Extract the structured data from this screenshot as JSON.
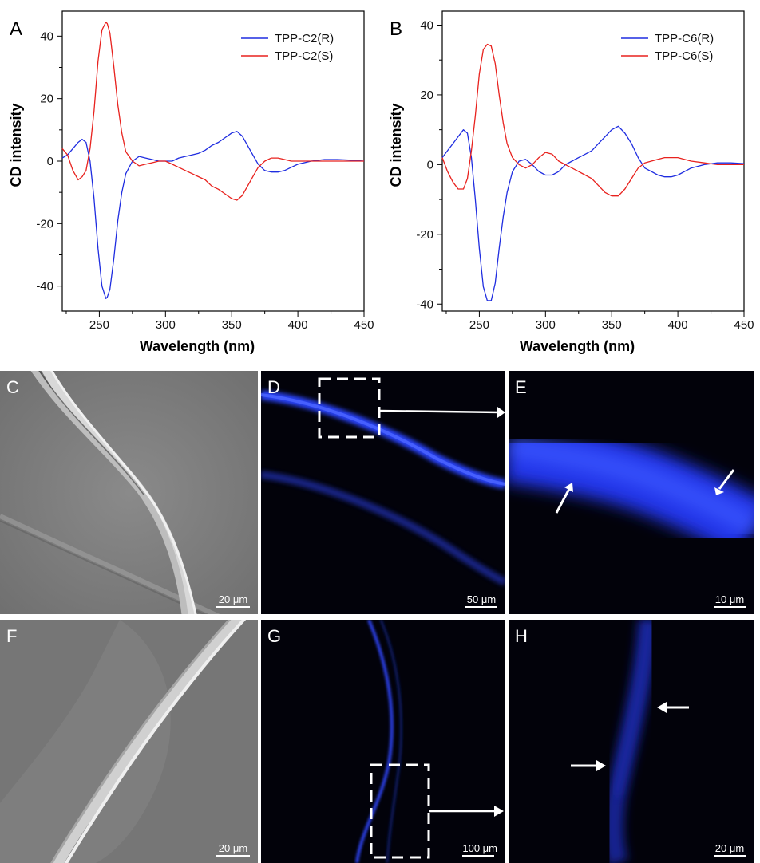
{
  "chart_data": [
    {
      "type": "line",
      "panel_label": "A",
      "xlabel": "Wavelength (nm)",
      "ylabel": "CD intensity",
      "xlim": [
        222,
        450
      ],
      "ylim": [
        -48,
        48
      ],
      "xticks": [
        250,
        300,
        350,
        400,
        450
      ],
      "yticks": [
        -40,
        -20,
        0,
        20,
        40
      ],
      "legend_position": "top-right",
      "series": [
        {
          "name": "TPP-C2(R)",
          "color": "#1f2de0",
          "x": [
            222,
            226,
            230,
            234,
            237,
            240,
            243,
            246,
            249,
            252,
            255,
            256,
            258,
            261,
            264,
            267,
            270,
            275,
            280,
            285,
            290,
            295,
            300,
            305,
            310,
            315,
            320,
            325,
            330,
            335,
            340,
            345,
            350,
            354,
            358,
            362,
            366,
            370,
            375,
            380,
            385,
            390,
            395,
            400,
            410,
            420,
            430,
            440,
            450
          ],
          "y": [
            1,
            2,
            4,
            6,
            7,
            6,
            0,
            -12,
            -28,
            -40,
            -44,
            -43.5,
            -41,
            -31,
            -19,
            -10,
            -4,
            0,
            1.5,
            1,
            0.5,
            0,
            0,
            0,
            1,
            1.5,
            2,
            2.5,
            3.5,
            5,
            6,
            7.5,
            9,
            9.5,
            8,
            5,
            2,
            -1,
            -3,
            -3.5,
            -3.5,
            -3,
            -2,
            -1,
            0,
            0.5,
            0.5,
            0.3,
            0
          ]
        },
        {
          "name": "TPP-C2(S)",
          "color": "#e8221e",
          "x": [
            222,
            226,
            230,
            234,
            237,
            240,
            243,
            246,
            249,
            252,
            255,
            256,
            258,
            261,
            264,
            267,
            270,
            275,
            280,
            285,
            290,
            295,
            300,
            305,
            310,
            315,
            320,
            325,
            330,
            335,
            340,
            345,
            350,
            354,
            358,
            362,
            366,
            370,
            375,
            380,
            385,
            390,
            395,
            400,
            410,
            420,
            430,
            440,
            450
          ],
          "y": [
            4,
            2,
            -3,
            -6,
            -5,
            -3,
            4,
            16,
            32,
            42,
            44.5,
            44,
            41,
            30,
            18,
            9,
            3,
            0,
            -1.5,
            -1,
            -0.5,
            0,
            0,
            -1,
            -2,
            -3,
            -4,
            -5,
            -6,
            -8,
            -9,
            -10.5,
            -12,
            -12.5,
            -11,
            -8,
            -5,
            -2,
            0,
            1,
            1,
            0.5,
            0,
            0,
            0,
            0,
            0,
            0,
            0
          ]
        }
      ]
    },
    {
      "type": "line",
      "panel_label": "B",
      "xlabel": "Wavelength (nm)",
      "ylabel": "CD intensity",
      "xlim": [
        222,
        450
      ],
      "ylim": [
        -42,
        44
      ],
      "xticks": [
        250,
        300,
        350,
        400,
        450
      ],
      "yticks": [
        -40,
        -20,
        0,
        20,
        40
      ],
      "legend_position": "top-right",
      "series": [
        {
          "name": "TPP-C6(R)",
          "color": "#1f2de0",
          "x": [
            222,
            226,
            230,
            234,
            238,
            241,
            244,
            247,
            250,
            253,
            256,
            259,
            262,
            265,
            268,
            271,
            275,
            280,
            285,
            290,
            295,
            300,
            305,
            310,
            315,
            320,
            325,
            330,
            335,
            340,
            345,
            350,
            355,
            360,
            365,
            370,
            375,
            380,
            385,
            390,
            395,
            400,
            410,
            420,
            430,
            440,
            450
          ],
          "y": [
            2,
            4,
            6,
            8,
            10,
            9,
            2,
            -10,
            -24,
            -35,
            -39,
            -39,
            -34,
            -24,
            -15,
            -8,
            -2,
            1,
            1.5,
            0,
            -2,
            -3,
            -3,
            -2,
            0,
            1,
            2,
            3,
            4,
            6,
            8,
            10,
            11,
            9,
            6,
            2,
            -1,
            -2,
            -3,
            -3.5,
            -3.5,
            -3,
            -1,
            0,
            0.5,
            0.5,
            0.3
          ]
        },
        {
          "name": "TPP-C6(S)",
          "color": "#e8221e",
          "x": [
            222,
            226,
            230,
            234,
            238,
            241,
            244,
            247,
            250,
            253,
            256,
            259,
            262,
            265,
            268,
            271,
            275,
            280,
            285,
            290,
            295,
            300,
            305,
            310,
            315,
            320,
            325,
            330,
            335,
            340,
            345,
            350,
            355,
            360,
            365,
            370,
            375,
            380,
            385,
            390,
            395,
            400,
            410,
            420,
            430,
            440,
            450
          ],
          "y": [
            2,
            -2,
            -5,
            -7,
            -7,
            -4,
            4,
            14,
            26,
            33,
            34.5,
            34,
            29,
            20,
            12,
            6,
            2,
            0,
            -1,
            0,
            2,
            3.5,
            3,
            1,
            0,
            -1,
            -2,
            -3,
            -4,
            -6,
            -8,
            -9,
            -9,
            -7,
            -4,
            -1,
            0.5,
            1,
            1.5,
            2,
            2,
            2,
            1,
            0.5,
            0,
            0,
            0
          ]
        }
      ]
    }
  ],
  "micrographs": [
    {
      "label": "C",
      "scale_bar": "20 μm"
    },
    {
      "label": "D",
      "scale_bar": "50 μm"
    },
    {
      "label": "E",
      "scale_bar": "10 μm"
    },
    {
      "label": "F",
      "scale_bar": "20 μm"
    },
    {
      "label": "G",
      "scale_bar": "100 μm"
    },
    {
      "label": "H",
      "scale_bar": "20 μm"
    }
  ]
}
